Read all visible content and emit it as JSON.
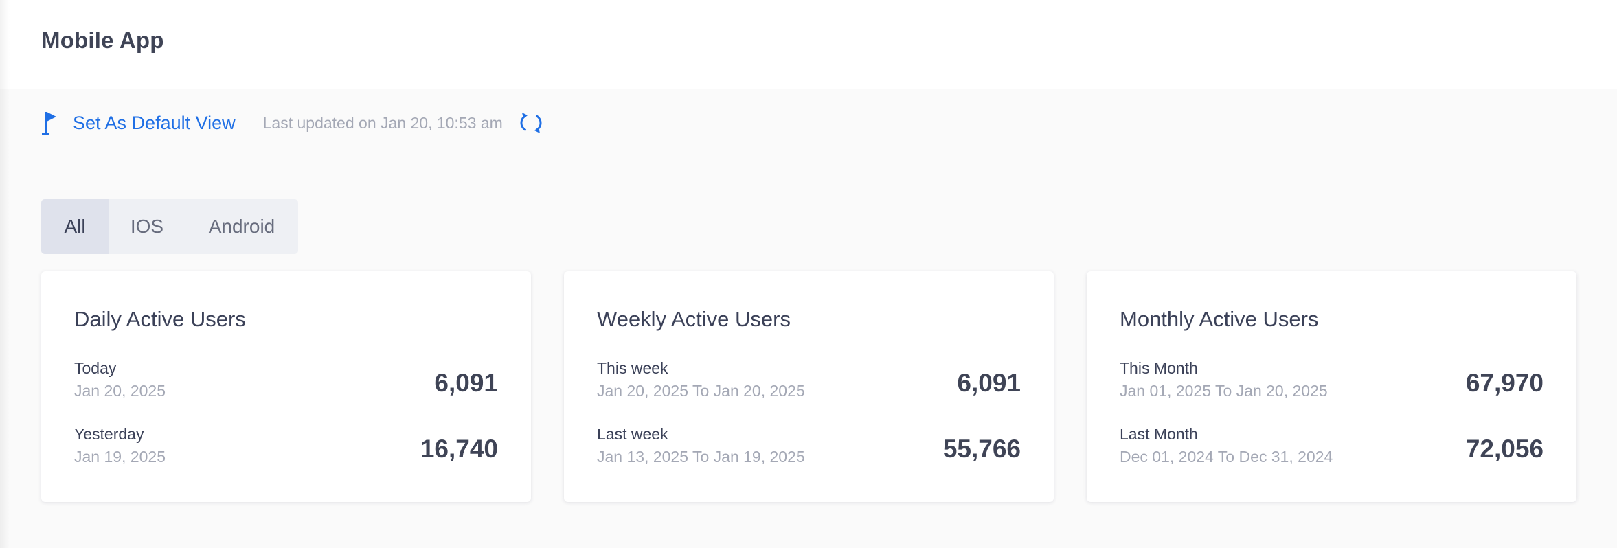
{
  "page": {
    "title": "Mobile App"
  },
  "toolbar": {
    "default_view_label": "Set As Default View",
    "last_updated": "Last updated on Jan 20, 10:53 am",
    "flag_icon": "flag-icon",
    "refresh_icon": "refresh-icon"
  },
  "tabs": [
    {
      "label": "All",
      "active": true
    },
    {
      "label": "IOS",
      "active": false
    },
    {
      "label": "Android",
      "active": false
    }
  ],
  "cards": [
    {
      "title": "Daily Active Users",
      "rows": [
        {
          "label": "Today",
          "date": "Jan 20, 2025",
          "value": "6,091"
        },
        {
          "label": "Yesterday",
          "date": "Jan 19, 2025",
          "value": "16,740"
        }
      ]
    },
    {
      "title": "Weekly Active Users",
      "rows": [
        {
          "label": "This week",
          "date": "Jan 20, 2025 To Jan 20, 2025",
          "value": "6,091"
        },
        {
          "label": "Last week",
          "date": "Jan 13, 2025 To Jan 19, 2025",
          "value": "55,766"
        }
      ]
    },
    {
      "title": "Monthly Active Users",
      "rows": [
        {
          "label": "This Month",
          "date": "Jan 01, 2025 To Jan 20, 2025",
          "value": "67,970"
        },
        {
          "label": "Last Month",
          "date": "Dec 01, 2024 To Dec 31, 2024",
          "value": "72,056"
        }
      ]
    }
  ],
  "colors": {
    "accent": "#1f6fe5",
    "text": "#3b4158",
    "muted": "#a4a8b5",
    "background": "#fafafa",
    "tab_active": "#dfe2ec",
    "tab_bg": "#eef0f4"
  }
}
